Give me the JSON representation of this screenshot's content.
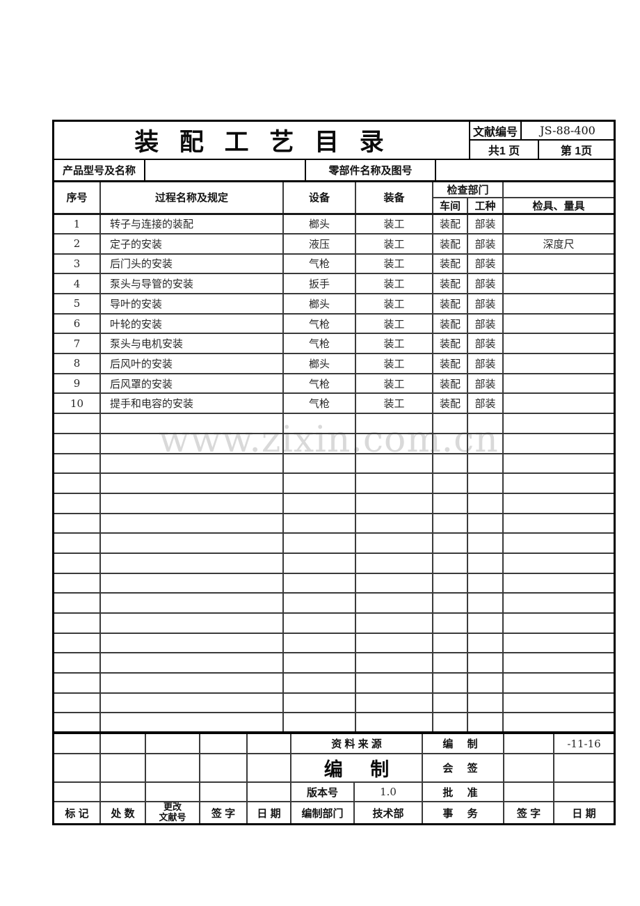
{
  "page": {
    "watermark": "www.zixin.com.cn"
  },
  "header": {
    "title": "装 配 工 艺 目 录",
    "doc_no_label": "文献编号",
    "doc_no_value": "JS-88-400",
    "pages_total": "共1 页",
    "page_current": "第 1页"
  },
  "product_bar": {
    "product_label": "产品型号及名称",
    "product_value": "",
    "part_label": "零部件名称及图号",
    "part_value": ""
  },
  "process_table": {
    "col_seq": "序号",
    "col_process": "过程名称及规定",
    "col_equipment": "设备",
    "col_tooling": "装备",
    "col_inspect_dept": "检查部门",
    "col_workshop": "车间",
    "col_worktype": "工种",
    "col_gauge": "检具、量具",
    "rows": [
      [
        "1",
        "转子与连接的装配",
        "榔头",
        "装工",
        "装配",
        "部装",
        ""
      ],
      [
        "2",
        "定子的安装",
        "液压",
        "装工",
        "装配",
        "部装",
        "深度尺"
      ],
      [
        "3",
        "后门头的安装",
        "气枪",
        "装工",
        "装配",
        "部装",
        ""
      ],
      [
        "4",
        "泵头与导管的安装",
        "扳手",
        "装工",
        "装配",
        "部装",
        ""
      ],
      [
        "5",
        "导叶的安装",
        "榔头",
        "装工",
        "装配",
        "部装",
        ""
      ],
      [
        "6",
        "叶轮的安装",
        "气枪",
        "装工",
        "装配",
        "部装",
        ""
      ],
      [
        "7",
        "泵头与电机安装",
        "气枪",
        "装工",
        "装配",
        "部装",
        ""
      ],
      [
        "8",
        "后风叶的安装",
        "榔头",
        "装工",
        "装配",
        "部装",
        ""
      ],
      [
        "9",
        "后风罩的安装",
        "气枪",
        "装工",
        "装配",
        "部装",
        ""
      ],
      [
        "10",
        "提手和电容的安装",
        "气枪",
        "装工",
        "装配",
        "部装",
        ""
      ]
    ],
    "empty_rows": 16
  },
  "footer": {
    "source_label": "资  料  来  源",
    "compile_small_label": "编  制",
    "date_value": "-11-16",
    "compile_big_label": "编 制",
    "countersign_label": "会 签",
    "version_label": "版本号",
    "version_value": "1.0",
    "approve_label": "批 准",
    "mark_label": "标 记",
    "count_label": "处 数",
    "change_doc_label": "更改\n文献号",
    "sign_label": "签 字",
    "date_label": "日 期",
    "dept_label": "编制部门",
    "dept_value": "技术部",
    "affairs_label": "事 务",
    "sign2_label": "签 字",
    "date2_label": "日 期"
  }
}
